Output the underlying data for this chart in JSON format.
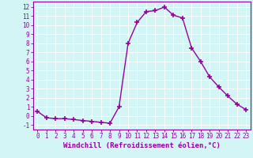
{
  "x": [
    0,
    1,
    2,
    3,
    4,
    5,
    6,
    7,
    8,
    9,
    10,
    11,
    12,
    13,
    14,
    15,
    16,
    17,
    18,
    19,
    20,
    21,
    22,
    23
  ],
  "y": [
    0.5,
    -0.2,
    -0.3,
    -0.3,
    -0.4,
    -0.5,
    -0.6,
    -0.7,
    -0.8,
    1.0,
    8.0,
    10.3,
    11.5,
    11.6,
    12.0,
    11.1,
    10.8,
    7.5,
    6.0,
    4.3,
    3.2,
    2.2,
    1.3,
    0.7
  ],
  "line_color": "#9400a0",
  "marker": "+",
  "marker_size": 4,
  "line_width": 1.0,
  "xlabel": "Windchill (Refroidissement éolien,°C)",
  "ylabel_ticks": [
    -1,
    0,
    1,
    2,
    3,
    4,
    5,
    6,
    7,
    8,
    9,
    10,
    11,
    12
  ],
  "xtick_labels": [
    "0",
    "1",
    "2",
    "3",
    "4",
    "5",
    "6",
    "7",
    "8",
    "9",
    "10",
    "11",
    "12",
    "13",
    "14",
    "15",
    "16",
    "17",
    "18",
    "19",
    "20",
    "21",
    "22",
    "23"
  ],
  "ylim": [
    -1.5,
    12.6
  ],
  "xlim": [
    -0.5,
    23.5
  ],
  "bg_color": "#d4f5f5",
  "grid_color": "#b8d8d8",
  "tick_color": "#9400a0",
  "tick_fontsize": 5.5,
  "label_fontsize": 6.5
}
